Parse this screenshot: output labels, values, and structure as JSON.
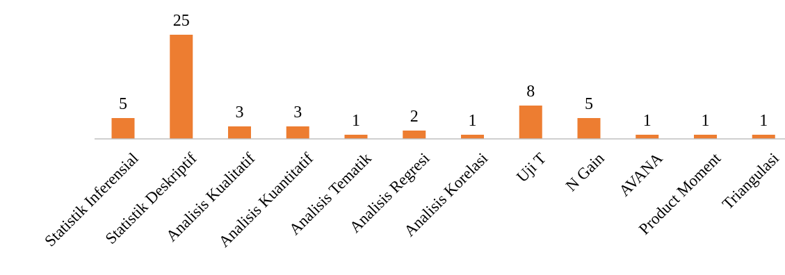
{
  "chart_data": {
    "type": "bar",
    "categories": [
      "Statistik Inferensial",
      "Statistik Deskriptif",
      "Analisis Kualitatif",
      "Analisis Kuantitatif",
      "Analisis Tematik",
      "Analisis Regresi",
      "Analisis Korelasi",
      "Uji T",
      "N Gain",
      "AVANA",
      "Product Moment",
      "Triangulasi"
    ],
    "values": [
      5,
      25,
      3,
      3,
      1,
      2,
      1,
      8,
      5,
      1,
      1,
      1
    ],
    "data_labels": [
      "5",
      "25",
      "3",
      "3",
      "1",
      "2",
      "1",
      "8",
      "5",
      "1",
      "1",
      "1"
    ],
    "title": "",
    "xlabel": "",
    "ylabel": "",
    "ylim": [
      0,
      25
    ],
    "grid": false,
    "legend": "none",
    "colors": {
      "bar": "#ED7D31",
      "axis": "#BFBFBF",
      "text": "#000000"
    }
  }
}
